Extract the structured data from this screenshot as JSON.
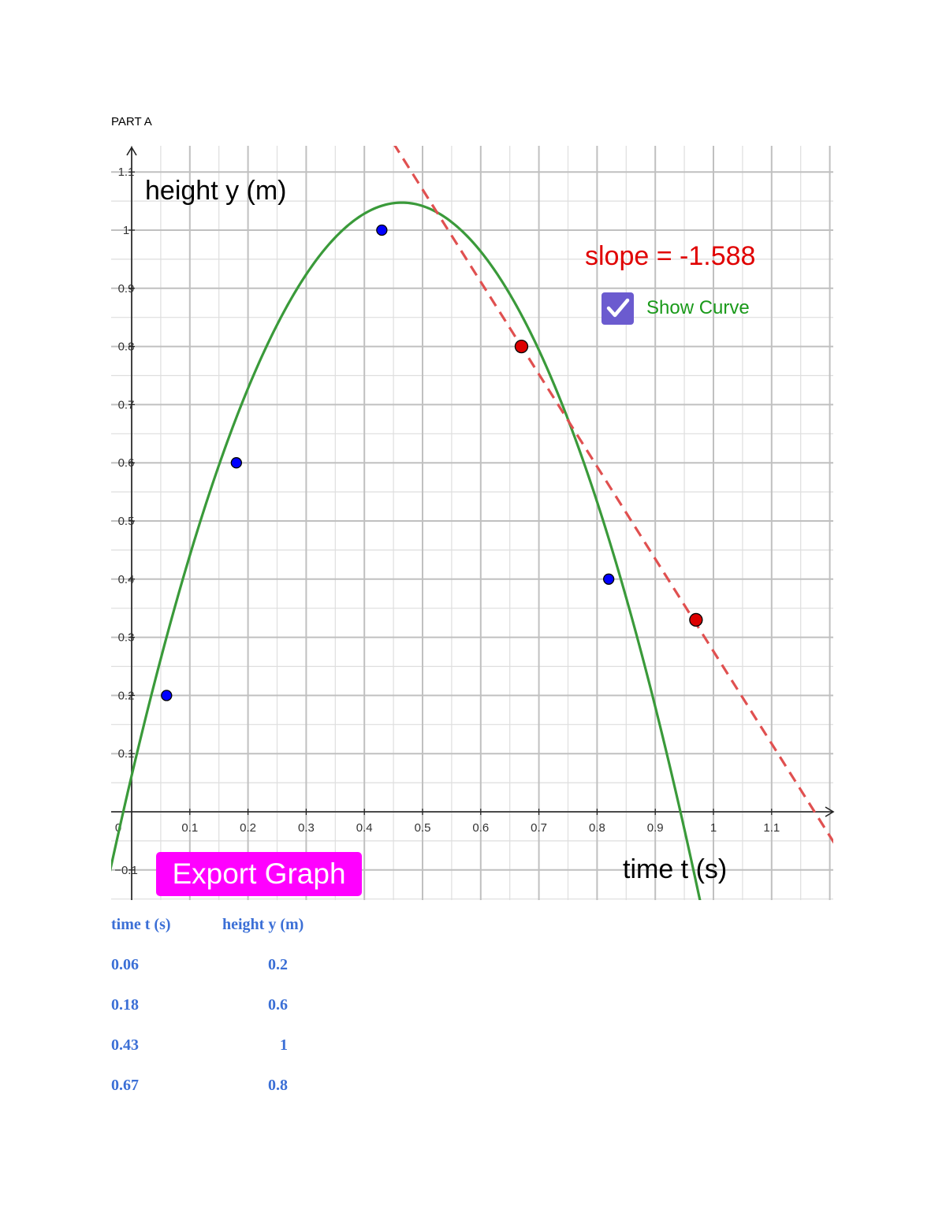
{
  "page": {
    "section_label": "PART A"
  },
  "controls": {
    "export_label": "Export Graph",
    "show_curve_label": "Show Curve",
    "show_curve_checked": true
  },
  "slope_label": "slope = -1.588",
  "table": {
    "headers": [
      "time t (s)",
      "height y (m)"
    ],
    "rows": [
      [
        "0.06",
        "0.2"
      ],
      [
        "0.18",
        "0.6"
      ],
      [
        "0.43",
        "1"
      ],
      [
        "0.67",
        "0.8"
      ]
    ]
  },
  "chart_data": {
    "type": "scatter",
    "xlabel": "time t (s)",
    "ylabel": "height y (m)",
    "xlim": [
      -0.035,
      1.2
    ],
    "ylim": [
      -0.15,
      1.15
    ],
    "grid": true,
    "x_ticks": [
      0,
      0.1,
      0.2,
      0.3,
      0.4,
      0.5,
      0.6,
      0.7,
      0.8,
      0.9,
      1,
      1.1
    ],
    "x_tick_labels": [
      "0",
      "0.1",
      "0.2",
      "0.3",
      "0.4",
      "0.5",
      "0.6",
      "0.7",
      "0.8",
      "0.9",
      "1",
      "1.1"
    ],
    "y_ticks": [
      -0.1,
      0.1,
      0.2,
      0.3,
      0.4,
      0.5,
      0.6,
      0.7,
      0.8,
      0.9,
      1,
      1.1
    ],
    "y_tick_labels": [
      "−0.1",
      "0.1",
      "0.2",
      "0.3",
      "0.4",
      "0.5",
      "0.6",
      "0.7",
      "0.8",
      "0.9",
      "1",
      "1.1"
    ],
    "data_points": {
      "x": [
        0.06,
        0.18,
        0.43,
        0.82
      ],
      "y": [
        0.2,
        0.6,
        1.0,
        0.4
      ],
      "color": "#0000ff"
    },
    "tangent_points": {
      "x": [
        0.67,
        0.97
      ],
      "y": [
        0.8,
        0.33
      ],
      "color": "#dd0000"
    },
    "fit_curve": {
      "form": "quadratic",
      "a": -4.5677,
      "b": 4.2425,
      "c": 0.0622,
      "color": "#3a9a3a"
    },
    "tangent_line": {
      "slope": -1.588,
      "through": [
        0.67,
        0.8
      ],
      "style": "dashed",
      "color": "#e05050"
    }
  }
}
